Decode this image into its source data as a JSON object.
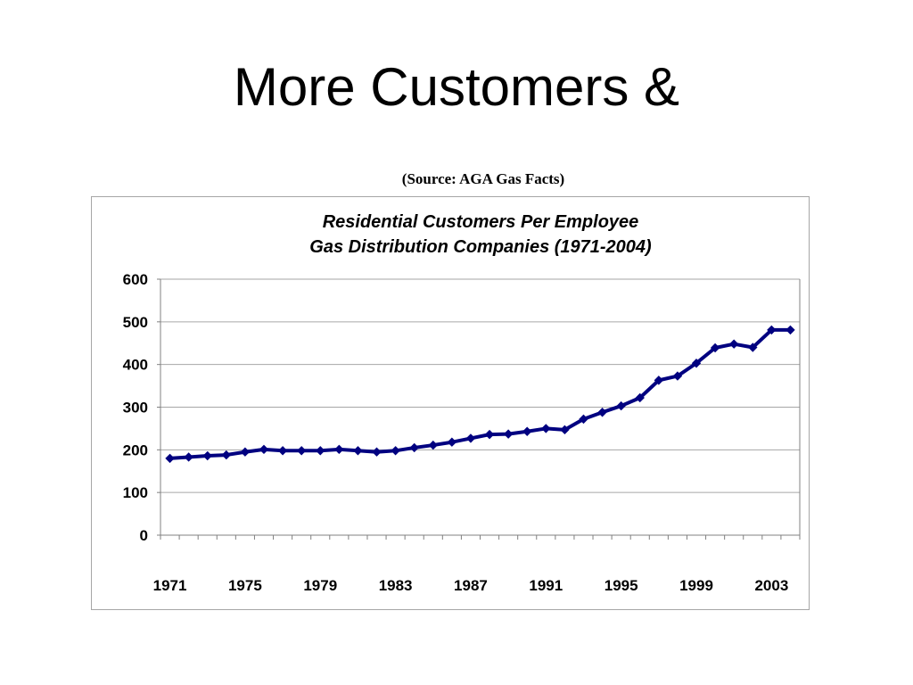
{
  "slide": {
    "title": "More Customers &",
    "source": "(Source: AGA Gas Facts)"
  },
  "colors": {
    "series": "#000080",
    "grid": "#a6a6a6",
    "axis": "#808080",
    "frame": "#a6a6a6"
  },
  "chart_data": {
    "type": "line",
    "title_lines": [
      "Residential Customers Per Employee",
      "Gas Distribution Companies (1971-2004)"
    ],
    "xlabel": "",
    "ylabel": "",
    "x": [
      1971,
      1972,
      1973,
      1974,
      1975,
      1976,
      1977,
      1978,
      1979,
      1980,
      1981,
      1982,
      1983,
      1984,
      1985,
      1986,
      1987,
      1988,
      1989,
      1990,
      1991,
      1992,
      1993,
      1994,
      1995,
      1996,
      1997,
      1998,
      1999,
      2000,
      2001,
      2002,
      2003,
      2004
    ],
    "x_tick_labels": [
      "1971",
      "1975",
      "1979",
      "1983",
      "1987",
      "1991",
      "1995",
      "1999",
      "2003"
    ],
    "ylim": [
      0,
      600
    ],
    "y_ticks": [
      0,
      100,
      200,
      300,
      400,
      500,
      600
    ],
    "grid": true,
    "legend": "none",
    "marker": "diamond",
    "series": [
      {
        "values": [
          180,
          183,
          186,
          188,
          195,
          201,
          198,
          198,
          198,
          201,
          198,
          195,
          198,
          205,
          211,
          218,
          227,
          236,
          237,
          243,
          250,
          247,
          272,
          288,
          303,
          322,
          363,
          373,
          403,
          439,
          448,
          440,
          481,
          481
        ]
      }
    ]
  }
}
